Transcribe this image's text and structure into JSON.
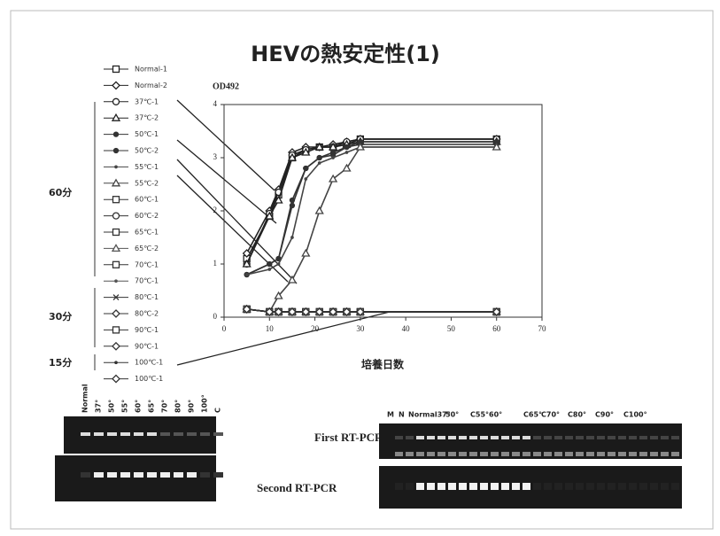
{
  "chart_data": {
    "type": "line",
    "title": "HEVの熱安定性(1)",
    "y_label": "OD492",
    "x_label": "培養日数",
    "x": [
      5,
      10,
      12,
      15,
      18,
      21,
      24,
      27,
      30,
      60
    ],
    "xlim": [
      0,
      70
    ],
    "xticks": [
      0,
      10,
      20,
      30,
      40,
      50,
      60,
      70
    ],
    "ylim": [
      0,
      4
    ],
    "yticks": [
      0,
      1,
      2,
      3,
      4
    ],
    "series": [
      {
        "name": "Normal-1",
        "color": "#222",
        "marker": "square",
        "values": [
          1.1,
          1.9,
          2.3,
          3.0,
          3.15,
          3.2,
          3.2,
          3.25,
          3.35,
          3.35
        ]
      },
      {
        "name": "Normal-2",
        "color": "#222",
        "marker": "diamond",
        "values": [
          1.2,
          2.0,
          2.4,
          3.1,
          3.2,
          3.2,
          3.25,
          3.3,
          3.35,
          3.35
        ]
      },
      {
        "name": "37℃-1",
        "color": "#222",
        "marker": "circle",
        "values": [
          1.0,
          1.95,
          2.35,
          3.05,
          3.15,
          3.2,
          3.2,
          3.3,
          3.35,
          3.35
        ]
      },
      {
        "name": "37℃-2",
        "color": "#222",
        "marker": "triangle",
        "values": [
          1.0,
          1.9,
          2.2,
          3.0,
          3.1,
          3.2,
          3.2,
          3.25,
          3.3,
          3.3
        ]
      },
      {
        "name": "50℃-1",
        "color": "#333",
        "marker": "dot",
        "values": [
          0.8,
          1.0,
          1.1,
          2.2,
          2.8,
          3.0,
          3.1,
          3.2,
          3.3,
          3.3
        ]
      },
      {
        "name": "50℃-2",
        "color": "#333",
        "marker": "dot",
        "values": [
          0.8,
          1.0,
          1.1,
          2.1,
          2.8,
          3.0,
          3.05,
          3.2,
          3.25,
          3.25
        ]
      },
      {
        "name": "55℃-1",
        "color": "#444",
        "marker": "none",
        "values": [
          0.8,
          0.9,
          1.0,
          1.5,
          2.6,
          2.9,
          3.0,
          3.1,
          3.2,
          3.2
        ]
      },
      {
        "name": "55℃-2",
        "color": "#444",
        "marker": "triangle",
        "values": [
          0.15,
          0.1,
          0.4,
          0.7,
          1.2,
          2.0,
          2.6,
          2.8,
          3.2,
          3.2
        ]
      },
      {
        "name": "60℃-1",
        "color": "#333",
        "marker": "square",
        "values": [
          0.15,
          0.1,
          0.1,
          0.1,
          0.1,
          0.1,
          0.1,
          0.1,
          0.1,
          0.1
        ]
      },
      {
        "name": "60℃-2",
        "color": "#333",
        "marker": "circle",
        "values": [
          0.15,
          0.1,
          0.1,
          0.1,
          0.1,
          0.1,
          0.1,
          0.1,
          0.1,
          0.1
        ]
      },
      {
        "name": "65℃-1",
        "color": "#333",
        "marker": "square",
        "values": [
          0.15,
          0.1,
          0.1,
          0.1,
          0.1,
          0.1,
          0.1,
          0.1,
          0.1,
          0.1
        ]
      },
      {
        "name": "65℃-2",
        "color": "#555",
        "marker": "triangle",
        "values": [
          0.15,
          0.1,
          0.1,
          0.1,
          0.1,
          0.1,
          0.1,
          0.1,
          0.1,
          0.1
        ]
      },
      {
        "name": "70℃-1",
        "color": "#333",
        "marker": "square",
        "values": [
          0.15,
          0.1,
          0.1,
          0.1,
          0.1,
          0.1,
          0.1,
          0.1,
          0.1,
          0.1
        ]
      },
      {
        "name": "70℃-1",
        "color": "#555",
        "marker": "none",
        "values": [
          0.15,
          0.1,
          0.1,
          0.1,
          0.1,
          0.1,
          0.1,
          0.1,
          0.1,
          0.1
        ]
      },
      {
        "name": "80℃-1",
        "color": "#333",
        "marker": "cross",
        "values": [
          0.15,
          0.1,
          0.1,
          0.1,
          0.1,
          0.1,
          0.1,
          0.1,
          0.1,
          0.1
        ]
      },
      {
        "name": "80℃-2",
        "color": "#333",
        "marker": "diamond",
        "values": [
          0.15,
          0.1,
          0.1,
          0.1,
          0.1,
          0.1,
          0.1,
          0.1,
          0.1,
          0.1
        ]
      },
      {
        "name": "90℃-1",
        "color": "#333",
        "marker": "square",
        "values": [
          0.15,
          0.1,
          0.1,
          0.1,
          0.1,
          0.1,
          0.1,
          0.1,
          0.1,
          0.1
        ]
      },
      {
        "name": "90℃-1",
        "color": "#333",
        "marker": "diamond",
        "values": [
          0.15,
          0.1,
          0.1,
          0.1,
          0.1,
          0.1,
          0.1,
          0.1,
          0.1,
          0.1
        ]
      },
      {
        "name": "100℃-1",
        "color": "#333",
        "marker": "none",
        "values": [
          0.15,
          0.1,
          0.1,
          0.1,
          0.1,
          0.1,
          0.1,
          0.1,
          0.1,
          0.1
        ]
      },
      {
        "name": "100℃-1",
        "color": "#333",
        "marker": "diamond",
        "values": [
          0.15,
          0.1,
          0.1,
          0.1,
          0.1,
          0.1,
          0.1,
          0.1,
          0.1,
          0.1
        ]
      }
    ]
  },
  "legend_groups": [
    "60分",
    "30分",
    "15分"
  ],
  "gels": {
    "first_label": "First RT-PCR",
    "second_label": "Second RT-PCR",
    "left_lanes": [
      "Normal",
      "37°",
      "50°",
      "55°",
      "60°",
      "65°",
      "70°",
      "80°",
      "90°",
      "100°",
      "C"
    ],
    "right_lanes": [
      "M",
      "N",
      "Normal37°",
      "50°",
      "C55°",
      "60°",
      "C65°",
      "C70°",
      "C80°",
      "C90°",
      "C100°"
    ]
  }
}
